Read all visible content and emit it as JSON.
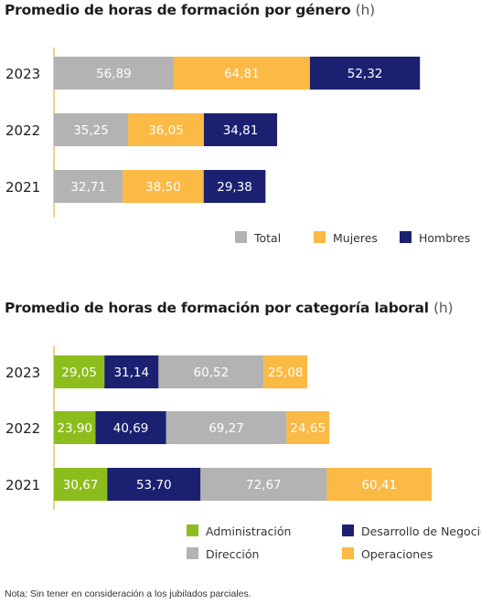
{
  "chart_data": [
    {
      "type": "bar",
      "orientation": "horizontal",
      "stacked": true,
      "title": "Promedio de horas de formación por género",
      "unit": "(h)",
      "categories": [
        "2023",
        "2022",
        "2021"
      ],
      "series": [
        {
          "name": "Total",
          "color": "#b3b3b3",
          "values": [
            56.89,
            35.25,
            32.71
          ],
          "labels": [
            "56,89",
            "35,25",
            "32,71"
          ]
        },
        {
          "name": "Mujeres",
          "color": "#fbb945",
          "values": [
            64.81,
            36.05,
            38.5
          ],
          "labels": [
            "64,81",
            "36,05",
            "38,50"
          ]
        },
        {
          "name": "Hombres",
          "color": "#1b2170",
          "values": [
            52.32,
            34.81,
            29.38
          ],
          "labels": [
            "52,32",
            "34,81",
            "29,38"
          ]
        }
      ],
      "legend_position": "bottom-right"
    },
    {
      "type": "bar",
      "orientation": "horizontal",
      "stacked": true,
      "title": "Promedio de horas de formación por categoría laboral",
      "unit": "(h)",
      "categories": [
        "2023",
        "2022",
        "2021"
      ],
      "series": [
        {
          "name": "Administración",
          "color": "#8dbd1c",
          "values": [
            29.05,
            23.9,
            30.67
          ],
          "labels": [
            "29,05",
            "23,90",
            "30,67"
          ]
        },
        {
          "name": "Desarrollo de Negocio",
          "color": "#1b2170",
          "values": [
            31.14,
            40.69,
            53.7
          ],
          "labels": [
            "31,14",
            "40,69",
            "53,70"
          ]
        },
        {
          "name": "Dirección",
          "color": "#b3b3b3",
          "values": [
            60.52,
            69.27,
            72.67
          ],
          "labels": [
            "60,52",
            "69,27",
            "72,67"
          ]
        },
        {
          "name": "Operaciones",
          "color": "#fbb945",
          "values": [
            25.08,
            24.65,
            60.41
          ],
          "labels": [
            "25,08",
            "24,65",
            "60,41"
          ]
        }
      ],
      "legend_position": "bottom"
    }
  ],
  "note": "Nota: Sin tener en consideración a los jubilados parciales."
}
